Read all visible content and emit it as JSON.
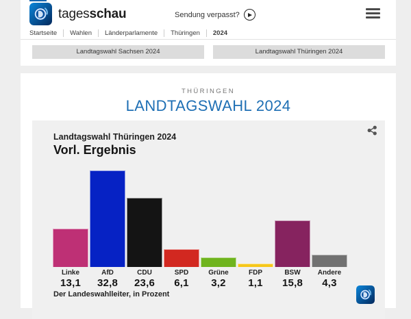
{
  "header": {
    "brand": {
      "logo_icon": "tagesschau-globe-icon",
      "wordmark_light": "tages",
      "wordmark_bold": "schau"
    },
    "sendung_verpasst_label": "Sendung verpasst?",
    "play_icon": "play-icon",
    "menu_icon": "hamburger-icon"
  },
  "breadcrumb": {
    "items": [
      "Startseite",
      "Wahlen",
      "Länderparlamente",
      "Thüringen",
      "2024"
    ]
  },
  "quicklinks": {
    "buttons": [
      "Landtagswahl Sachsen 2024",
      "Landtagswahl Thüringen 2024"
    ]
  },
  "page": {
    "kicker": "THÜRINGEN",
    "title": "LANDTAGSWAHL 2024"
  },
  "chart_data": {
    "type": "bar",
    "title": "Landtagswahl Thüringen 2024",
    "subtitle": "Vorl. Ergebnis",
    "categories": [
      "Linke",
      "AfD",
      "CDU",
      "SPD",
      "Grüne",
      "FDP",
      "BSW",
      "Andere"
    ],
    "values": [
      13.1,
      32.8,
      23.6,
      6.1,
      3.2,
      1.1,
      15.8,
      4.3
    ],
    "value_labels": [
      "13,1",
      "32,8",
      "23,6",
      "6,1",
      "3,2",
      "1,1",
      "15,8",
      "4,3"
    ],
    "bar_colors": [
      "#be3075",
      "#0622c4",
      "#141414",
      "#d22820",
      "#6fb41e",
      "#f6c71a",
      "#86235f",
      "#717171"
    ],
    "xlabel": "",
    "ylabel": "",
    "ylim": [
      0,
      35
    ],
    "grid": false,
    "legend": "none",
    "source": "Der Landeswahlleiter, in Prozent",
    "unit": "Prozent",
    "share_icon": "share-icon",
    "watermark_icon": "tagesschau-globe-icon"
  },
  "colors": {
    "accent_blue": "#1e6fb4",
    "header_accent": "#1565ae",
    "card_background": "#f0f0f0",
    "button_background": "#dcdcdc",
    "page_background": "#eeeeee"
  }
}
